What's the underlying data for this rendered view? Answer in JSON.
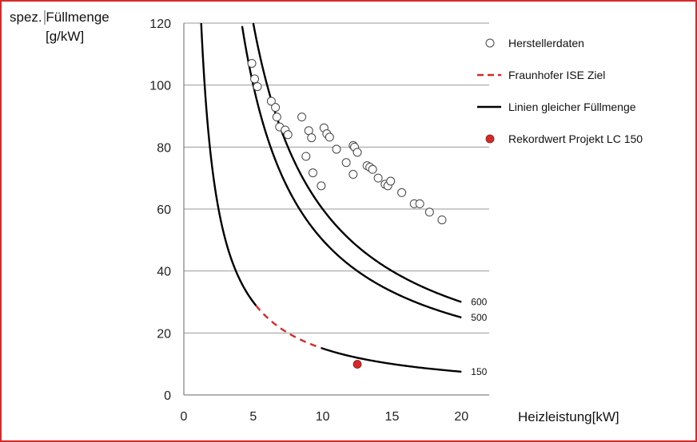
{
  "chart_data": {
    "type": "scatter",
    "title": "",
    "xlabel": "Heizleistung[kW]",
    "ylabel": [
      "spez. Füllmenge",
      "[g/kW]"
    ],
    "xlim": [
      0,
      22
    ],
    "ylim": [
      0,
      120
    ],
    "xticks": [
      0,
      5,
      10,
      15,
      20
    ],
    "yticks": [
      0,
      20,
      40,
      60,
      80,
      100,
      120
    ],
    "grid": "horizontal",
    "legend_position": "top-right",
    "colors": {
      "line": "#000000",
      "target": "#d42a2a",
      "record": "#d42a2a",
      "grid": "#9a9a9a",
      "frame": "#d42a2a"
    },
    "legend": [
      {
        "label": "Herstellerdaten",
        "marker": "open-circle"
      },
      {
        "label": "Fraunhofer ISE Ziel",
        "marker": "dashed-red-line"
      },
      {
        "label": "Linien gleicher Füllmenge",
        "marker": "black-line"
      },
      {
        "label": "Rekordwert Projekt LC 150",
        "marker": "red-dot"
      }
    ],
    "series": [
      {
        "name": "Herstellerdaten",
        "kind": "scatter",
        "points": [
          [
            4.9,
            107
          ],
          [
            5.1,
            102
          ],
          [
            5.3,
            99.5
          ],
          [
            6.3,
            94.8
          ],
          [
            6.6,
            92.8
          ],
          [
            6.7,
            89.7
          ],
          [
            6.9,
            86.5
          ],
          [
            7.3,
            85.5
          ],
          [
            7.5,
            84
          ],
          [
            8.5,
            89.7
          ],
          [
            8.8,
            77
          ],
          [
            9.0,
            85.3
          ],
          [
            9.2,
            83
          ],
          [
            9.3,
            71.7
          ],
          [
            9.9,
            67.5
          ],
          [
            10.1,
            86.2
          ],
          [
            10.3,
            84.3
          ],
          [
            10.5,
            83.2
          ],
          [
            11.0,
            79.3
          ],
          [
            11.7,
            75
          ],
          [
            12.2,
            80.5
          ],
          [
            12.3,
            80
          ],
          [
            12.2,
            71.2
          ],
          [
            12.5,
            78.3
          ],
          [
            13.2,
            74
          ],
          [
            13.4,
            73.5
          ],
          [
            13.6,
            72.8
          ],
          [
            14.0,
            70
          ],
          [
            14.5,
            68
          ],
          [
            14.7,
            67.5
          ],
          [
            14.9,
            69
          ],
          [
            15.7,
            65.3
          ],
          [
            16.6,
            61.7
          ],
          [
            17.0,
            61.7
          ],
          [
            17.7,
            59
          ],
          [
            18.6,
            56.5
          ]
        ]
      },
      {
        "name": "Linien gleicher Füllmenge",
        "kind": "hyperbola",
        "curves": [
          {
            "label": "600",
            "k": 600,
            "x_start": 5.0,
            "x_end": 20
          },
          {
            "label": "500",
            "k": 500,
            "x_start": 4.2,
            "x_end": 20
          },
          {
            "label": "150",
            "k": 150,
            "x_start": 1.25,
            "x_end": 20,
            "gap": [
              5.2,
              9.9
            ]
          }
        ]
      },
      {
        "name": "Fraunhofer ISE Ziel",
        "kind": "dashed-hyperbola",
        "k": 150,
        "x_start": 5.2,
        "x_end": 9.9
      },
      {
        "name": "Rekordwert Projekt LC 150",
        "kind": "point",
        "points": [
          [
            12.5,
            9.9
          ]
        ]
      }
    ]
  }
}
